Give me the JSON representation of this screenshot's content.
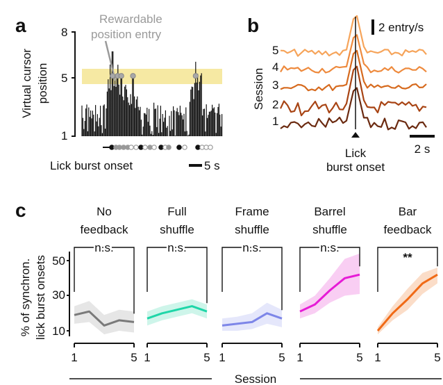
{
  "panels": {
    "a": "a",
    "b": "b",
    "c": "c"
  },
  "chart_data": [
    {
      "type": "bar",
      "panel": "a",
      "ylabel": "Virtual cursor position",
      "yticks": [
        "1",
        "5",
        "8"
      ],
      "ylim": [
        1,
        8
      ],
      "reward_zone": [
        4.6,
        5.6
      ],
      "annotation": "Rewardable position entry",
      "xlabel": "Lick burst onset",
      "scalebar": "5 s",
      "peaks": [
        {
          "t": 4.2,
          "v": 6.7
        },
        {
          "t": 4.9,
          "v": 5.8
        },
        {
          "t": 5.4,
          "v": 5.2
        },
        {
          "t": 7.0,
          "v": 4.9
        },
        {
          "t": 15.6,
          "v": 6.0
        }
      ]
    },
    {
      "type": "line",
      "panel": "b",
      "ylabel": "Session",
      "series": [
        {
          "name": "5",
          "color": "#f6a45a"
        },
        {
          "name": "4",
          "color": "#ee8a3d"
        },
        {
          "name": "3",
          "color": "#d66a1e"
        },
        {
          "name": "2",
          "color": "#a84414"
        },
        {
          "name": "1",
          "color": "#6b2a10"
        }
      ],
      "xlabel": "Lick burst onset",
      "scalebar_y": "2 entry/s",
      "scalebar_x": "2 s"
    },
    {
      "type": "line",
      "panel": "c",
      "ylabel": "% of synchron. lick burst onsets",
      "xlabel": "Session",
      "yticks": [
        10,
        30,
        50
      ],
      "ylim": [
        6,
        54
      ],
      "x": [
        1,
        2,
        3,
        4,
        5
      ],
      "xticks": [
        "1",
        "5"
      ],
      "subplots": [
        {
          "title": [
            "No",
            "feedback"
          ],
          "sig": "n.s.",
          "color": "#7a7a7a",
          "band": "#e3e3e3",
          "values": [
            19,
            21,
            13,
            16,
            15
          ],
          "lower": [
            14,
            15,
            8,
            10,
            9
          ],
          "upper": [
            24,
            27,
            19,
            22,
            21
          ]
        },
        {
          "title": [
            "Full",
            "shuffle"
          ],
          "sig": "n.s.",
          "color": "#1fd6a8",
          "band": "#c9f4e8",
          "values": [
            17,
            20,
            22,
            24,
            21
          ],
          "lower": [
            13,
            16,
            18,
            20,
            17
          ],
          "upper": [
            21,
            24,
            26,
            28,
            25
          ]
        },
        {
          "title": [
            "Frame",
            "shuffle"
          ],
          "sig": "n.s.",
          "color": "#7d86e8",
          "band": "#e2e4fb",
          "values": [
            13,
            14,
            15,
            20,
            17
          ],
          "lower": [
            10,
            10,
            11,
            14,
            12
          ],
          "upper": [
            17,
            18,
            20,
            26,
            22
          ]
        },
        {
          "title": [
            "Barrel",
            "shuffle"
          ],
          "sig": "n.s.",
          "color": "#e61bd6",
          "band": "#f8c9f2",
          "values": [
            21,
            25,
            33,
            40,
            42
          ],
          "lower": [
            17,
            20,
            26,
            30,
            31
          ],
          "upper": [
            25,
            30,
            40,
            51,
            54
          ]
        },
        {
          "title": [
            "Bar",
            "feedback"
          ],
          "sig": "**",
          "color": "#f06a16",
          "band": "#fbd9c2",
          "values": [
            10,
            20,
            28,
            37,
            42
          ],
          "lower": [
            8,
            16,
            22,
            31,
            37
          ],
          "upper": [
            12,
            24,
            34,
            43,
            46
          ]
        }
      ]
    }
  ]
}
